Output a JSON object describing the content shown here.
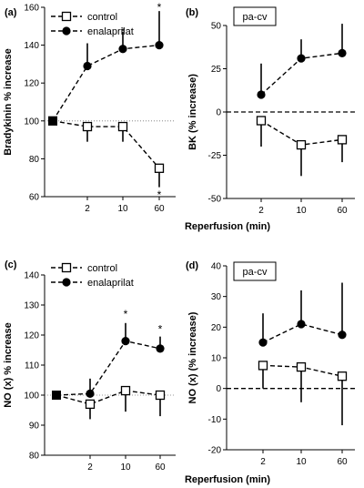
{
  "figure": {
    "xlabel_top": "Reperfusion (min)",
    "xlabel_bottom": "Reperfusion (min)"
  },
  "chart_data": [
    {
      "panel": "(a)",
      "type": "line",
      "ylabel": "Bradykinin % increase",
      "ylim": [
        60,
        160
      ],
      "yticks": [
        60,
        80,
        100,
        120,
        140,
        160
      ],
      "x_categories": [
        "",
        "2",
        "10",
        "60"
      ],
      "reference_line": 100,
      "legend": {
        "placement": "top-left",
        "entries": [
          "control",
          "enalaprilat"
        ]
      },
      "series": [
        {
          "name": "control",
          "marker": "open-square",
          "values": [
            100,
            97,
            97,
            75
          ],
          "err_upper": [
            0,
            0,
            0,
            0
          ],
          "err_lower": [
            0,
            8,
            8,
            10
          ]
        },
        {
          "name": "enalaprilat",
          "marker": "filled-circle",
          "values": [
            100,
            129,
            138,
            140
          ],
          "err_upper": [
            0,
            12,
            9,
            18
          ],
          "err_lower": [
            0,
            0,
            0,
            0
          ]
        }
      ],
      "annotations": [
        {
          "text": "*",
          "x_index": 2,
          "y": 147
        },
        {
          "text": "*",
          "x_index": 3,
          "y": 160
        },
        {
          "text": "*",
          "x_index": 3,
          "y": 61
        }
      ]
    },
    {
      "panel": "(b)",
      "type": "line",
      "box_label": "pa-cv",
      "ylabel": "BK (% increase)",
      "ylim": [
        -50,
        50
      ],
      "yticks": [
        -50,
        -25,
        0,
        25,
        50
      ],
      "x_categories": [
        "2",
        "10",
        "60"
      ],
      "reference_line": 0,
      "series": [
        {
          "marker": "filled-circle",
          "values": [
            10,
            31,
            34
          ],
          "err_upper": [
            18,
            11,
            17
          ],
          "err_lower": [
            0,
            0,
            0
          ]
        },
        {
          "marker": "open-square",
          "values": [
            -5,
            -19,
            -16
          ],
          "err_upper": [
            0,
            0,
            0
          ],
          "err_lower": [
            15,
            18,
            13
          ]
        }
      ]
    },
    {
      "panel": "(c)",
      "type": "line",
      "ylabel": "NO (x) % increase",
      "ylim": [
        80,
        140
      ],
      "yticks": [
        80,
        90,
        100,
        110,
        120,
        130,
        140
      ],
      "x_categories": [
        "",
        "2",
        "10",
        "60"
      ],
      "reference_line": 100,
      "legend": {
        "placement": "top-left",
        "entries": [
          "control",
          "enalaprilat"
        ]
      },
      "series": [
        {
          "name": "control",
          "marker": "open-square",
          "values": [
            100,
            97,
            101.5,
            100
          ],
          "err_upper": [
            0,
            0,
            0,
            0
          ],
          "err_lower": [
            0,
            5,
            7,
            7
          ]
        },
        {
          "name": "enalaprilat",
          "marker": "filled-circle",
          "values": [
            100,
            100.5,
            118,
            115.5
          ],
          "err_upper": [
            0,
            5,
            6,
            4
          ],
          "err_lower": [
            0,
            0,
            0,
            0
          ]
        }
      ],
      "annotations": [
        {
          "text": "*",
          "x_index": 2,
          "y": 127
        },
        {
          "text": "*",
          "x_index": 3,
          "y": 122
        }
      ]
    },
    {
      "panel": "(d)",
      "type": "line",
      "box_label": "pa-cv",
      "ylabel": "NO (x) (% increase)",
      "ylim": [
        -20,
        40
      ],
      "yticks": [
        -20,
        -10,
        0,
        10,
        20,
        30,
        40
      ],
      "x_categories": [
        "2",
        "10",
        "60"
      ],
      "reference_line": 0,
      "series": [
        {
          "marker": "filled-circle",
          "values": [
            15,
            21,
            17.5
          ],
          "err_upper": [
            9.5,
            11,
            17
          ],
          "err_lower": [
            0,
            0,
            0
          ]
        },
        {
          "marker": "open-square",
          "values": [
            7.5,
            7,
            4
          ],
          "err_upper": [
            0,
            0,
            0
          ],
          "err_lower": [
            7.5,
            11.5,
            16
          ]
        }
      ]
    }
  ]
}
